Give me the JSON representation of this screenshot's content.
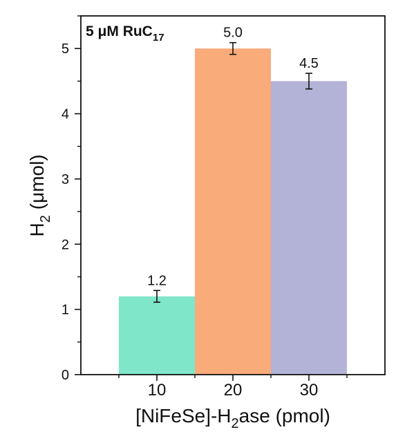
{
  "chart_data": {
    "type": "bar",
    "title": "",
    "annotation": {
      "text": "5 μM RuC",
      "subscript": "17"
    },
    "xlabel": {
      "before": "[NiFeSe]-H",
      "subscript": "2",
      "after": "ase (pmol)"
    },
    "ylabel": {
      "before": "H",
      "subscript": "2",
      "after": " (μmol)"
    },
    "categories": [
      "10",
      "20",
      "30"
    ],
    "values": [
      1.2,
      5.0,
      4.5
    ],
    "errors": [
      0.09,
      0.09,
      0.12
    ],
    "data_labels": [
      "1.2",
      "5.0",
      "4.5"
    ],
    "colors": [
      "#7fe6c9",
      "#f9ab79",
      "#b3b3d7"
    ],
    "ylim": [
      0,
      5.5
    ],
    "xlim": [
      0,
      4
    ],
    "yticks": [
      "0",
      "1",
      "2",
      "3",
      "4",
      "5"
    ],
    "grid": false,
    "legend": "none"
  }
}
